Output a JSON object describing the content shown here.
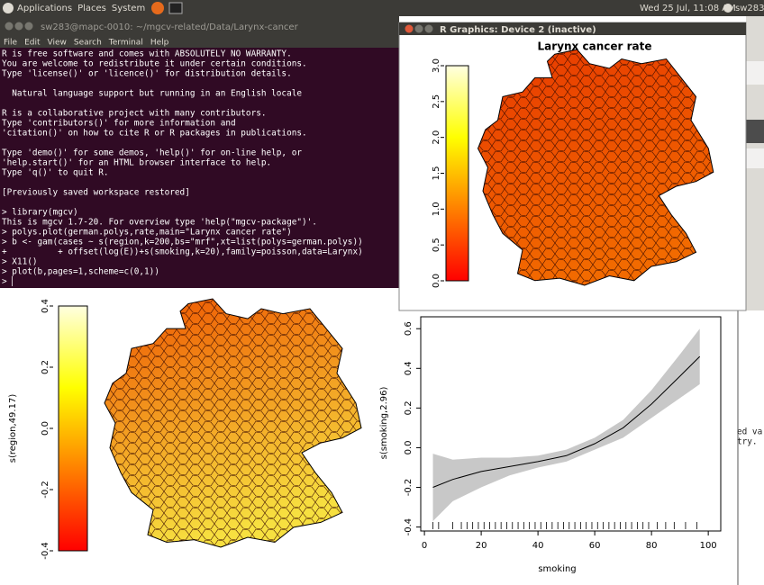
{
  "top_panel": {
    "menus": [
      "Applications",
      "Places",
      "System"
    ],
    "clock": "Wed 25 Jul, 11:08 AM",
    "user": "sw283"
  },
  "terminal": {
    "title": "sw283@mapc-0010: ~/mgcv-related/Data/Larynx-cancer",
    "menu": [
      "File",
      "Edit",
      "View",
      "Search",
      "Terminal",
      "Help"
    ],
    "paragraphs": [
      [
        "R is free software and comes with ABSOLUTELY NO WARRANTY.",
        "You are welcome to redistribute it under certain conditions.",
        "Type 'license()' or 'licence()' for distribution details."
      ],
      [
        "  Natural language support but running in an English locale"
      ],
      [
        "R is a collaborative project with many contributors.",
        "Type 'contributors()' for more information and",
        "'citation()' on how to cite R or R packages in publications."
      ],
      [
        "Type 'demo()' for some demos, 'help()' for on-line help, or",
        "'help.start()' for an HTML browser interface to help.",
        "Type 'q()' to quit R."
      ],
      [
        "[Previously saved workspace restored]"
      ],
      [
        "> library(mgcv)",
        "This is mgcv 1.7-20. For overview type 'help(\"mgcv-package\")'.",
        "> polys.plot(german.polys,rate,main=\"Larynx cancer rate\")",
        "> b <- gam(cases ~ s(region,k=200,bs=\"mrf\",xt=list(polys=german.polys))",
        "+          + offset(log(E))+s(smoking,k=20),family=poisson,data=Larynx)",
        "> X11()",
        "> plot(b,pages=1,scheme=c(0,1))",
        "> ▏"
      ]
    ]
  },
  "graphics_window": {
    "title": "R Graphics: Device 2 (inactive)"
  },
  "background_window": {
    "lines": [
      "ed va",
      "try."
    ]
  },
  "chart_data": [
    {
      "type": "colorbar",
      "title": "Larynx cancer rate",
      "ylim": [
        0,
        3
      ],
      "yticks": [
        {
          "value": 0,
          "label": "0.0"
        },
        0.5,
        {
          "value": 1,
          "label": "1.0"
        },
        1.5,
        {
          "value": 2,
          "label": "2.0"
        },
        2.5,
        {
          "value": 3,
          "label": "3.0"
        }
      ],
      "colors": [
        "#ff0000",
        "#ff8000",
        "#ffff00",
        "#ffffe0"
      ],
      "map_colors": [
        "#e83a00",
        "#f26a00"
      ]
    },
    {
      "type": "colorbar",
      "ylabel": "s(region,49.17)",
      "ylim": [
        -0.4,
        0.4
      ],
      "yticks": [
        -0.4,
        -0.2,
        {
          "value": 0,
          "label": "0.0"
        },
        0.2,
        0.4
      ],
      "colors": [
        "#ff0000",
        "#ff8000",
        "#ffff00",
        "#ffffe0"
      ],
      "map_colors": [
        "#ee5500",
        "#f7e040"
      ]
    },
    {
      "type": "line",
      "xlabel": "smoking",
      "ylabel": "s(smoking,2.96)",
      "x": [
        3,
        10,
        20,
        30,
        40,
        50,
        60,
        70,
        80,
        90,
        97
      ],
      "values": [
        -0.2,
        -0.16,
        -0.12,
        -0.095,
        -0.07,
        -0.04,
        0.02,
        0.1,
        0.22,
        0.36,
        0.46
      ],
      "lower": [
        -0.37,
        -0.27,
        -0.2,
        -0.14,
        -0.1,
        -0.07,
        -0.01,
        0.05,
        0.15,
        0.25,
        0.32
      ],
      "upper": [
        -0.03,
        -0.06,
        -0.05,
        -0.05,
        -0.04,
        -0.01,
        0.05,
        0.14,
        0.29,
        0.47,
        0.6
      ],
      "rug": [
        3,
        5,
        10,
        13,
        15,
        17,
        19,
        21,
        23,
        25,
        27,
        29,
        31,
        33,
        35,
        37,
        39,
        41,
        43,
        45,
        47,
        49,
        51,
        53,
        55,
        57,
        59,
        61,
        63,
        65,
        67,
        69,
        71,
        73,
        75,
        77,
        79,
        82,
        85,
        88,
        92,
        96
      ],
      "color": "#000000",
      "band_color": "#c8c8c8",
      "xlim": [
        -1.3,
        104.4
      ],
      "ylim": [
        -0.42,
        0.66
      ],
      "xticks": [
        0,
        20,
        40,
        60,
        80,
        100
      ],
      "yticks": [
        -0.4,
        -0.2,
        {
          "value": 0,
          "label": "0.0"
        },
        0.2,
        0.4,
        0.6
      ]
    }
  ]
}
